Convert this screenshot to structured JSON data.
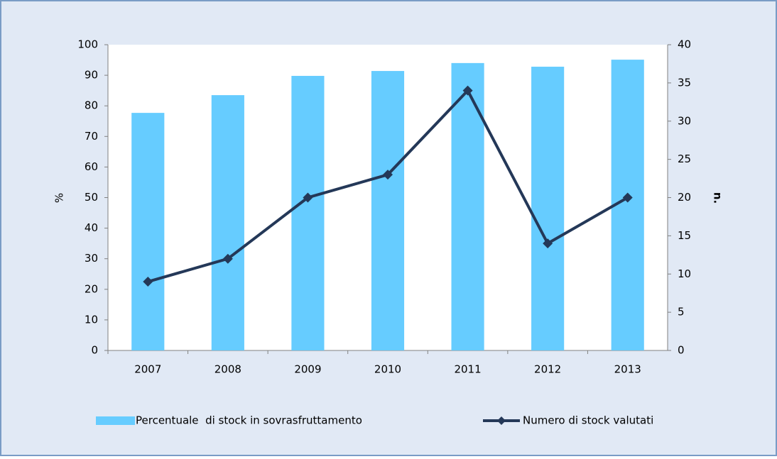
{
  "chart_data": {
    "type": "bar",
    "categories": [
      "2007",
      "2008",
      "2009",
      "2010",
      "2011",
      "2012",
      "2013"
    ],
    "series": [
      {
        "name": "Percentuale  di stock in sovrasfruttamento",
        "type": "bar",
        "color": "#66ccff",
        "values": [
          77.7,
          83.5,
          89.8,
          91.4,
          94,
          92.8,
          95.1
        ]
      },
      {
        "name": "Numero di stock valutati",
        "type": "line",
        "axis": "y2",
        "color": "#243858",
        "values": [
          9,
          12,
          20,
          23,
          34,
          14,
          20
        ]
      }
    ],
    "ylabel": "%",
    "y2label": "n.",
    "ylim": [
      0,
      100
    ],
    "yticks": [
      0,
      10,
      20,
      30,
      40,
      50,
      60,
      70,
      80,
      90,
      100
    ],
    "y2lim": [
      0,
      40
    ],
    "y2ticks": [
      0,
      5,
      10,
      15,
      20,
      25,
      30,
      35,
      40
    ],
    "grid": false,
    "legend": "bottom"
  }
}
